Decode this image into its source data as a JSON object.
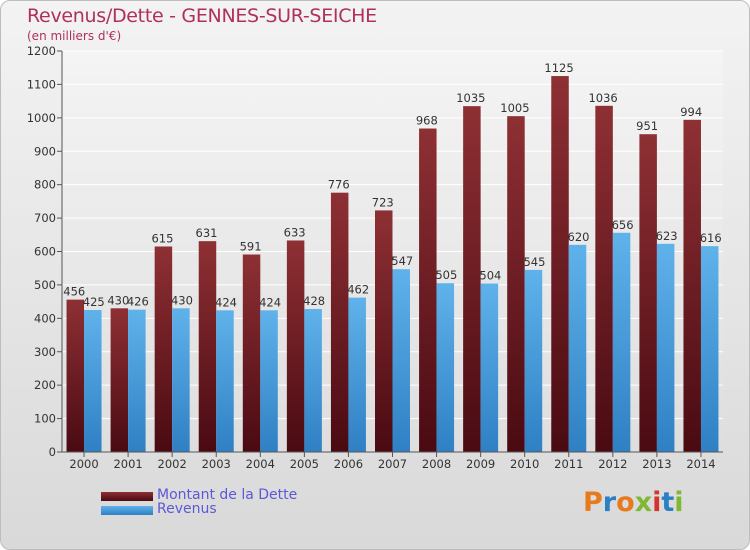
{
  "header": {
    "title": "Revenus/Dette - GENNES-SUR-SEICHE",
    "subtitle": "(en milliers d'€)"
  },
  "logo": {
    "text": "Proxiti",
    "colors": [
      "#e87a1e",
      "#2b7fc4",
      "#e87a1e",
      "#7fb832",
      "#d6332e",
      "#2b7fc4",
      "#7fb832"
    ]
  },
  "colors": {
    "dette": "#7a1f26",
    "revenus": "#4aa0de",
    "title": "#b0305a",
    "legend_text": "#5b59d9"
  },
  "chart_data": {
    "type": "bar",
    "categories": [
      "2000",
      "2001",
      "2002",
      "2003",
      "2004",
      "2005",
      "2006",
      "2007",
      "2008",
      "2009",
      "2010",
      "2011",
      "2012",
      "2013",
      "2014"
    ],
    "series": [
      {
        "name": "Montant de la Dette",
        "values": [
          456,
          430,
          615,
          631,
          591,
          633,
          776,
          723,
          968,
          1035,
          1005,
          1125,
          1036,
          951,
          994
        ]
      },
      {
        "name": "Revenus",
        "values": [
          425,
          426,
          430,
          424,
          424,
          428,
          462,
          547,
          505,
          504,
          545,
          620,
          656,
          623,
          616
        ]
      }
    ],
    "ylim": [
      0,
      1200
    ],
    "yticks": [
      0,
      100,
      200,
      300,
      400,
      500,
      600,
      700,
      800,
      900,
      1000,
      1100,
      1200
    ],
    "grid": true,
    "legend": "bottom-left"
  }
}
